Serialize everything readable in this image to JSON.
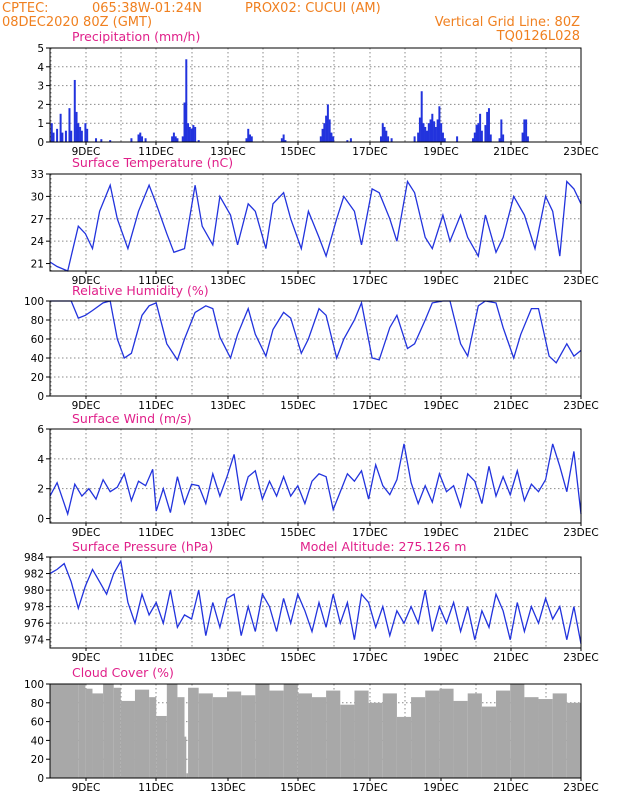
{
  "header": {
    "line1_left": "CPTEC:",
    "coords": "065:38W-01:24N",
    "station": "PROX02: CUCUI (AM)",
    "line2_left": "08DEC2020 80Z (GMT)",
    "vgrid": "Vertical Grid Line: 80Z",
    "code": "TQ0126L028"
  },
  "x_dates": [
    "9DEC",
    "11DEC",
    "13DEC",
    "15DEC",
    "17DEC",
    "19DEC",
    "21DEC",
    "23DEC"
  ],
  "colors": {
    "line": "#2233dd",
    "bar": "#2233dd",
    "cloud": "#a8a8a8",
    "title": "#e0208a",
    "header": "#f08020"
  },
  "chart_data": [
    {
      "type": "bar",
      "title": "Precipitation (mm/h)",
      "ylim": [
        0,
        5
      ],
      "yticks": [
        0,
        1,
        2,
        3,
        4,
        5
      ],
      "x_days": [
        0.0,
        15.0
      ],
      "events": [
        {
          "t": 0.05,
          "v": 1.0
        },
        {
          "t": 0.1,
          "v": 0.5
        },
        {
          "t": 0.2,
          "v": 0.7
        },
        {
          "t": 0.3,
          "v": 1.5
        },
        {
          "t": 0.35,
          "v": 0.5
        },
        {
          "t": 0.45,
          "v": 0.6
        },
        {
          "t": 0.55,
          "v": 1.8
        },
        {
          "t": 0.6,
          "v": 0.6
        },
        {
          "t": 0.7,
          "v": 3.3
        },
        {
          "t": 0.75,
          "v": 1.6
        },
        {
          "t": 0.8,
          "v": 1.0
        },
        {
          "t": 0.85,
          "v": 0.8
        },
        {
          "t": 0.9,
          "v": 0.6
        },
        {
          "t": 1.0,
          "v": 1.0
        },
        {
          "t": 1.05,
          "v": 0.7
        },
        {
          "t": 1.3,
          "v": 0.2
        },
        {
          "t": 1.45,
          "v": 0.15
        },
        {
          "t": 1.7,
          "v": 0.1
        },
        {
          "t": 2.3,
          "v": 0.2
        },
        {
          "t": 2.5,
          "v": 0.4
        },
        {
          "t": 2.55,
          "v": 0.5
        },
        {
          "t": 2.6,
          "v": 0.3
        },
        {
          "t": 2.7,
          "v": 0.2
        },
        {
          "t": 3.45,
          "v": 0.3
        },
        {
          "t": 3.5,
          "v": 0.5
        },
        {
          "t": 3.55,
          "v": 0.3
        },
        {
          "t": 3.6,
          "v": 0.2
        },
        {
          "t": 3.75,
          "v": 0.3
        },
        {
          "t": 3.8,
          "v": 2.1
        },
        {
          "t": 3.85,
          "v": 4.4
        },
        {
          "t": 3.9,
          "v": 1.0
        },
        {
          "t": 3.95,
          "v": 0.8
        },
        {
          "t": 4.0,
          "v": 0.7
        },
        {
          "t": 4.05,
          "v": 0.9
        },
        {
          "t": 4.1,
          "v": 0.8
        },
        {
          "t": 4.2,
          "v": 0.1
        },
        {
          "t": 5.55,
          "v": 0.2
        },
        {
          "t": 5.6,
          "v": 0.7
        },
        {
          "t": 5.65,
          "v": 0.4
        },
        {
          "t": 5.7,
          "v": 0.3
        },
        {
          "t": 6.55,
          "v": 0.2
        },
        {
          "t": 6.6,
          "v": 0.4
        },
        {
          "t": 6.65,
          "v": 0.1
        },
        {
          "t": 7.65,
          "v": 0.3
        },
        {
          "t": 7.7,
          "v": 0.7
        },
        {
          "t": 7.75,
          "v": 1.0
        },
        {
          "t": 7.8,
          "v": 1.4
        },
        {
          "t": 7.85,
          "v": 2.0
        },
        {
          "t": 7.9,
          "v": 1.2
        },
        {
          "t": 7.95,
          "v": 0.5
        },
        {
          "t": 8.0,
          "v": 0.3
        },
        {
          "t": 8.4,
          "v": 0.1
        },
        {
          "t": 8.5,
          "v": 0.2
        },
        {
          "t": 9.35,
          "v": 0.3
        },
        {
          "t": 9.4,
          "v": 1.0
        },
        {
          "t": 9.45,
          "v": 0.8
        },
        {
          "t": 9.5,
          "v": 0.6
        },
        {
          "t": 9.55,
          "v": 0.3
        },
        {
          "t": 9.65,
          "v": 0.2
        },
        {
          "t": 10.3,
          "v": 0.3
        },
        {
          "t": 10.4,
          "v": 0.5
        },
        {
          "t": 10.45,
          "v": 1.3
        },
        {
          "t": 10.5,
          "v": 2.7
        },
        {
          "t": 10.55,
          "v": 1.0
        },
        {
          "t": 10.6,
          "v": 0.8
        },
        {
          "t": 10.65,
          "v": 0.6
        },
        {
          "t": 10.7,
          "v": 1.0
        },
        {
          "t": 10.75,
          "v": 1.2
        },
        {
          "t": 10.8,
          "v": 1.5
        },
        {
          "t": 10.85,
          "v": 1.1
        },
        {
          "t": 10.9,
          "v": 0.8
        },
        {
          "t": 10.95,
          "v": 1.2
        },
        {
          "t": 11.0,
          "v": 1.9
        },
        {
          "t": 11.05,
          "v": 1.0
        },
        {
          "t": 11.1,
          "v": 0.5
        },
        {
          "t": 11.15,
          "v": 0.2
        },
        {
          "t": 11.5,
          "v": 0.3
        },
        {
          "t": 11.95,
          "v": 0.2
        },
        {
          "t": 12.0,
          "v": 0.5
        },
        {
          "t": 12.05,
          "v": 0.9
        },
        {
          "t": 12.1,
          "v": 1.0
        },
        {
          "t": 12.15,
          "v": 1.5
        },
        {
          "t": 12.2,
          "v": 0.6
        },
        {
          "t": 12.3,
          "v": 0.9
        },
        {
          "t": 12.35,
          "v": 1.6
        },
        {
          "t": 12.4,
          "v": 1.8
        },
        {
          "t": 12.45,
          "v": 0.4
        },
        {
          "t": 12.7,
          "v": 0.2
        },
        {
          "t": 12.75,
          "v": 1.2
        },
        {
          "t": 12.8,
          "v": 0.4
        },
        {
          "t": 13.35,
          "v": 0.5
        },
        {
          "t": 13.4,
          "v": 1.2
        },
        {
          "t": 13.45,
          "v": 1.2
        },
        {
          "t": 13.5,
          "v": 0.3
        }
      ]
    },
    {
      "type": "line",
      "title": "Surface Temperature (nC)",
      "ylim": [
        20.0,
        33.0
      ],
      "yticks": [
        21,
        24,
        27,
        30,
        33
      ],
      "x_days": [
        0.0,
        15.0
      ],
      "x": [
        0.0,
        0.2,
        0.5,
        0.6,
        0.8,
        1.0,
        1.2,
        1.4,
        1.7,
        1.9,
        2.2,
        2.5,
        2.8,
        3.0,
        3.3,
        3.5,
        3.8,
        4.1,
        4.3,
        4.6,
        4.8,
        5.1,
        5.3,
        5.6,
        5.8,
        6.1,
        6.3,
        6.6,
        6.8,
        7.1,
        7.3,
        7.6,
        7.8,
        8.1,
        8.3,
        8.6,
        8.8,
        9.1,
        9.3,
        9.6,
        9.8,
        10.1,
        10.3,
        10.6,
        10.8,
        11.1,
        11.3,
        11.6,
        11.8,
        12.1,
        12.3,
        12.6,
        12.8,
        13.1,
        13.4,
        13.7,
        14.0,
        14.2,
        14.4,
        14.6,
        14.8,
        15.0
      ],
      "y": [
        21.2,
        20.6,
        20.0,
        22.0,
        26.0,
        25.0,
        23.0,
        28.0,
        31.5,
        27.0,
        23.0,
        28.0,
        31.5,
        29.0,
        25.0,
        22.5,
        23.0,
        31.5,
        26.0,
        23.5,
        30.0,
        27.5,
        23.5,
        29.0,
        28.0,
        23.0,
        29.0,
        30.5,
        27.0,
        23.0,
        28.0,
        24.5,
        22.0,
        27.0,
        30.0,
        28.0,
        23.5,
        31.0,
        30.5,
        27.0,
        24.0,
        32.0,
        30.5,
        24.5,
        23.0,
        27.5,
        24.0,
        27.5,
        24.5,
        22.0,
        27.5,
        22.5,
        24.5,
        30.0,
        27.5,
        23.0,
        30.0,
        28.0,
        22.0,
        32.0,
        31.0,
        29.0
      ]
    },
    {
      "type": "line",
      "title": "Relative Humidity (%)",
      "ylim": [
        0,
        100
      ],
      "yticks": [
        0,
        20,
        40,
        60,
        80,
        100
      ],
      "x_days": [
        0.0,
        15.0
      ],
      "x": [
        0.0,
        0.3,
        0.6,
        0.8,
        1.0,
        1.2,
        1.5,
        1.7,
        1.9,
        2.1,
        2.3,
        2.6,
        2.8,
        3.0,
        3.3,
        3.6,
        3.8,
        4.1,
        4.4,
        4.6,
        4.8,
        5.1,
        5.3,
        5.6,
        5.8,
        6.1,
        6.3,
        6.6,
        6.8,
        7.1,
        7.3,
        7.6,
        7.8,
        8.1,
        8.3,
        8.6,
        8.8,
        9.1,
        9.3,
        9.6,
        9.8,
        10.1,
        10.3,
        10.6,
        10.8,
        11.1,
        11.3,
        11.6,
        11.8,
        12.1,
        12.3,
        12.6,
        12.8,
        13.1,
        13.3,
        13.6,
        13.8,
        14.1,
        14.3,
        14.6,
        14.8,
        15.0
      ],
      "y": [
        100,
        100,
        100,
        82,
        85,
        90,
        98,
        100,
        60,
        40,
        45,
        85,
        95,
        98,
        55,
        38,
        60,
        88,
        95,
        92,
        62,
        40,
        65,
        92,
        65,
        42,
        70,
        88,
        82,
        45,
        60,
        92,
        85,
        40,
        60,
        80,
        98,
        40,
        38,
        72,
        85,
        50,
        55,
        80,
        98,
        100,
        100,
        55,
        42,
        95,
        100,
        98,
        72,
        40,
        65,
        92,
        92,
        42,
        35,
        55,
        42,
        48
      ]
    },
    {
      "type": "line",
      "title": "Surface Wind (m/s)",
      "ylim": [
        -0.3,
        6.0
      ],
      "yticks": [
        0,
        2,
        4,
        6
      ],
      "x_days": [
        0.0,
        15.0
      ],
      "x": [
        0.0,
        0.2,
        0.4,
        0.5,
        0.7,
        0.9,
        1.1,
        1.3,
        1.5,
        1.7,
        1.9,
        2.1,
        2.3,
        2.5,
        2.7,
        2.9,
        3.0,
        3.2,
        3.4,
        3.6,
        3.8,
        4.0,
        4.2,
        4.4,
        4.6,
        4.8,
        5.0,
        5.2,
        5.4,
        5.6,
        5.8,
        6.0,
        6.2,
        6.4,
        6.6,
        6.8,
        7.0,
        7.2,
        7.4,
        7.6,
        7.8,
        8.0,
        8.2,
        8.4,
        8.6,
        8.8,
        9.0,
        9.2,
        9.4,
        9.6,
        9.8,
        10.0,
        10.2,
        10.4,
        10.6,
        10.8,
        11.0,
        11.2,
        11.4,
        11.6,
        11.8,
        12.0,
        12.2,
        12.4,
        12.6,
        12.8,
        13.0,
        13.2,
        13.4,
        13.6,
        13.8,
        14.0,
        14.2,
        14.4,
        14.6,
        14.8,
        15.0
      ],
      "y": [
        1.5,
        2.4,
        1.0,
        0.3,
        2.3,
        1.5,
        2.0,
        1.3,
        2.6,
        1.8,
        2.1,
        3.0,
        1.2,
        2.5,
        2.2,
        3.3,
        0.5,
        2.0,
        0.4,
        2.8,
        1.0,
        2.3,
        2.2,
        1.0,
        3.0,
        1.5,
        2.8,
        4.3,
        1.2,
        2.8,
        3.2,
        1.3,
        2.5,
        1.5,
        2.8,
        1.5,
        2.2,
        1.0,
        2.5,
        3.0,
        2.8,
        0.6,
        1.8,
        3.0,
        2.5,
        3.2,
        1.3,
        3.6,
        2.2,
        1.6,
        2.6,
        5.0,
        2.4,
        1.0,
        2.2,
        1.1,
        3.0,
        1.8,
        2.2,
        0.8,
        3.0,
        2.5,
        1.0,
        3.5,
        1.5,
        2.8,
        1.6,
        3.2,
        1.2,
        2.3,
        1.8,
        2.6,
        5.0,
        3.5,
        1.8,
        4.5,
        0.3
      ]
    },
    {
      "type": "line",
      "title": "Surface Pressure (hPa)",
      "annotation": "Model Altitude: 275.126 m",
      "ylim": [
        973.0,
        984.0
      ],
      "yticks": [
        974,
        976,
        978,
        980,
        982,
        984
      ],
      "x_days": [
        0.0,
        15.0
      ],
      "x": [
        0.0,
        0.2,
        0.4,
        0.6,
        0.8,
        1.0,
        1.2,
        1.4,
        1.6,
        1.8,
        2.0,
        2.2,
        2.4,
        2.6,
        2.8,
        3.0,
        3.2,
        3.4,
        3.6,
        3.8,
        4.0,
        4.2,
        4.4,
        4.6,
        4.8,
        5.0,
        5.2,
        5.4,
        5.6,
        5.8,
        6.0,
        6.2,
        6.4,
        6.6,
        6.8,
        7.0,
        7.2,
        7.4,
        7.6,
        7.8,
        8.0,
        8.2,
        8.4,
        8.6,
        8.8,
        9.0,
        9.2,
        9.4,
        9.6,
        9.8,
        10.0,
        10.2,
        10.4,
        10.6,
        10.8,
        11.0,
        11.2,
        11.4,
        11.6,
        11.8,
        12.0,
        12.2,
        12.4,
        12.6,
        12.8,
        13.0,
        13.2,
        13.4,
        13.6,
        13.8,
        14.0,
        14.2,
        14.4,
        14.6,
        14.8,
        15.0
      ],
      "y": [
        982.0,
        982.5,
        983.2,
        981.0,
        977.8,
        980.5,
        982.5,
        981.0,
        979.5,
        982.0,
        983.5,
        978.5,
        976.0,
        979.5,
        977.0,
        978.5,
        976.0,
        980.0,
        975.5,
        977.0,
        976.5,
        980.0,
        974.5,
        978.5,
        975.5,
        979.0,
        979.5,
        974.5,
        978.0,
        975.0,
        979.5,
        978.0,
        975.0,
        979.0,
        976.0,
        979.5,
        977.5,
        975.0,
        978.5,
        975.5,
        979.5,
        976.0,
        978.5,
        974.0,
        979.5,
        978.5,
        975.5,
        978.0,
        974.5,
        977.5,
        976.0,
        978.0,
        976.0,
        980.0,
        975.0,
        978.0,
        976.0,
        978.5,
        975.0,
        978.0,
        974.0,
        977.5,
        975.5,
        979.5,
        977.5,
        974.0,
        978.5,
        975.0,
        978.0,
        976.0,
        979.0,
        976.5,
        978.0,
        974.0,
        978.0,
        973.5
      ]
    },
    {
      "type": "area",
      "title": "Cloud Cover (%)",
      "ylim": [
        0,
        100
      ],
      "yticks": [
        0,
        20,
        40,
        60,
        80,
        100
      ],
      "x_days": [
        0.0,
        15.0
      ],
      "x": [
        0.0,
        0.8,
        1.0,
        1.2,
        1.5,
        1.8,
        2.0,
        2.4,
        2.8,
        3.0,
        3.3,
        3.6,
        3.8,
        3.85,
        3.9,
        4.2,
        4.6,
        5.0,
        5.4,
        5.8,
        6.2,
        6.6,
        7.0,
        7.4,
        7.8,
        8.2,
        8.6,
        9.0,
        9.4,
        9.8,
        10.2,
        10.6,
        11.0,
        11.4,
        11.8,
        12.2,
        12.6,
        13.0,
        13.4,
        13.8,
        14.2,
        14.6,
        15.0
      ],
      "y": [
        100,
        100,
        95,
        90,
        100,
        96,
        82,
        94,
        86,
        66,
        100,
        86,
        44,
        5,
        96,
        90,
        86,
        92,
        88,
        100,
        93,
        100,
        90,
        86,
        93,
        78,
        93,
        80,
        90,
        65,
        86,
        93,
        95,
        82,
        90,
        76,
        93,
        100,
        86,
        84,
        90,
        80,
        83
      ]
    }
  ]
}
